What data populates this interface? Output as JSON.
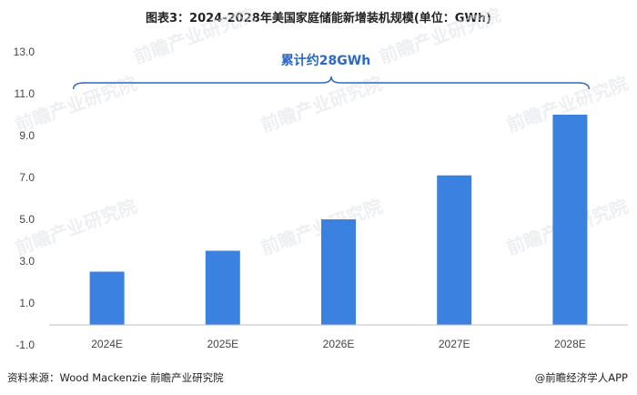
{
  "title": "图表3：2024-2028年美国家庭储能新增装机规模(单位：GWh)",
  "source": "资料来源：Wood Mackenzie 前瞻产业研究院",
  "credit": "@前瞻经济学人APP",
  "watermark": "前瞻产业研究院",
  "annotation": "累计约28GWh",
  "colors": {
    "bar": "#3b82e0",
    "brace": "#2a68c8"
  },
  "chart_data": {
    "type": "bar",
    "categories": [
      "2024E",
      "2025E",
      "2026E",
      "2027E",
      "2028E"
    ],
    "values": [
      2.5,
      3.5,
      5.0,
      7.1,
      10.0
    ],
    "ylim": [
      -1.0,
      13.0
    ],
    "yticks": [
      "13.0",
      "11.0",
      "9.0",
      "7.0",
      "5.0",
      "3.0",
      "1.0",
      "-1.0"
    ],
    "title": "",
    "xlabel": "",
    "ylabel": "",
    "grid": false
  }
}
